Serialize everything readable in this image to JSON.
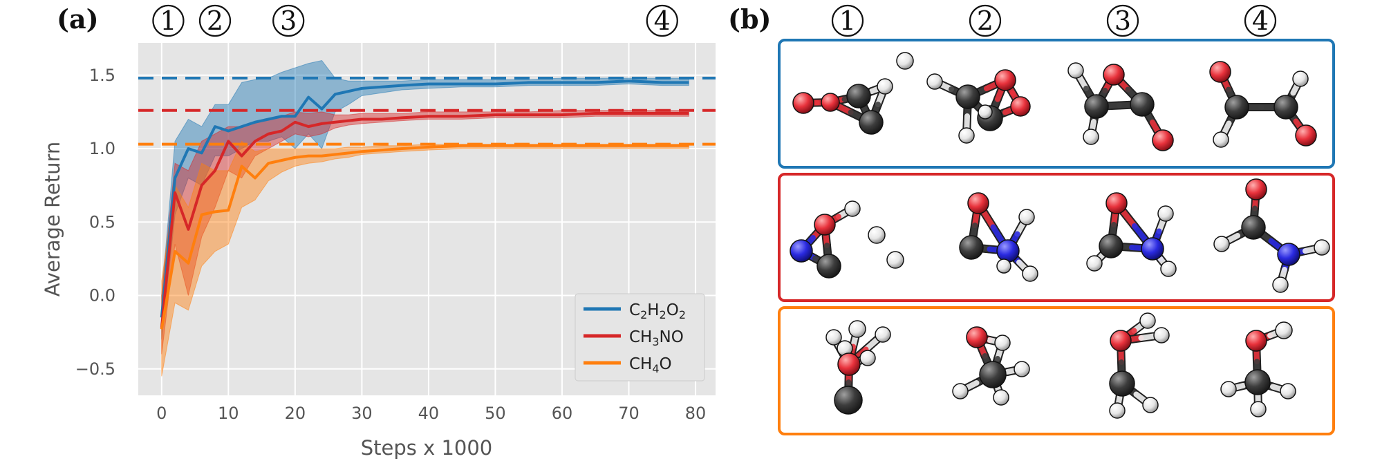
{
  "figure": {
    "panel_a_label": "(a)",
    "panel_b_label": "(b)",
    "step_markers": [
      {
        "label": "1",
        "x": 1
      },
      {
        "label": "2",
        "x": 8
      },
      {
        "label": "3",
        "x": 19
      },
      {
        "label": "4",
        "x": 75
      }
    ]
  },
  "chart_data": {
    "type": "line",
    "xlabel": "Steps x 1000",
    "ylabel": "Average Return",
    "xlim": [
      -3.5,
      83
    ],
    "ylim": [
      -0.68,
      1.72
    ],
    "xticks": [
      0,
      10,
      20,
      30,
      40,
      50,
      60,
      70,
      80
    ],
    "yticks": [
      -0.5,
      0.0,
      0.5,
      1.0,
      1.5
    ],
    "ytick_labels": [
      "−0.5",
      "0.0",
      "0.5",
      "1.0",
      "1.5"
    ],
    "grid": true,
    "legend_position": "lower-right",
    "series": [
      {
        "name": "C2H2O2",
        "legend": [
          {
            "t": "C"
          },
          {
            "t": "2",
            "sub": true
          },
          {
            "t": "H"
          },
          {
            "t": "2",
            "sub": true
          },
          {
            "t": "O"
          },
          {
            "t": "2",
            "sub": true
          }
        ],
        "color": "#1f77b4",
        "reference": 1.48,
        "x": [
          0,
          2,
          4,
          6,
          8,
          10,
          12,
          14,
          16,
          18,
          20,
          22,
          24,
          26,
          28,
          30,
          33,
          36,
          40,
          45,
          50,
          55,
          60,
          65,
          70,
          75,
          79
        ],
        "y": [
          -0.15,
          0.8,
          1.0,
          0.97,
          1.15,
          1.12,
          1.15,
          1.18,
          1.2,
          1.22,
          1.22,
          1.35,
          1.27,
          1.37,
          1.39,
          1.41,
          1.42,
          1.43,
          1.44,
          1.44,
          1.44,
          1.45,
          1.45,
          1.45,
          1.46,
          1.45,
          1.45
        ],
        "lower": [
          -0.3,
          0.55,
          0.8,
          0.75,
          0.95,
          0.95,
          1.0,
          1.05,
          1.05,
          1.08,
          1.0,
          1.1,
          1.0,
          1.25,
          1.3,
          1.36,
          1.38,
          1.4,
          1.41,
          1.42,
          1.42,
          1.43,
          1.43,
          1.43,
          1.44,
          1.43,
          1.43
        ],
        "upper": [
          0.0,
          1.05,
          1.2,
          1.15,
          1.3,
          1.3,
          1.45,
          1.47,
          1.48,
          1.52,
          1.55,
          1.58,
          1.6,
          1.48,
          1.46,
          1.46,
          1.46,
          1.46,
          1.47,
          1.47,
          1.47,
          1.47,
          1.48,
          1.48,
          1.48,
          1.48,
          1.48
        ]
      },
      {
        "name": "CH3NO",
        "legend": [
          {
            "t": "CH"
          },
          {
            "t": "3",
            "sub": true
          },
          {
            "t": "NO"
          }
        ],
        "color": "#d62728",
        "reference": 1.26,
        "x": [
          0,
          2,
          4,
          6,
          8,
          10,
          12,
          14,
          16,
          18,
          20,
          22,
          24,
          26,
          28,
          30,
          33,
          36,
          40,
          45,
          50,
          55,
          60,
          65,
          70,
          75,
          79
        ],
        "y": [
          -0.22,
          0.7,
          0.45,
          0.75,
          0.85,
          1.05,
          0.95,
          1.05,
          1.1,
          1.12,
          1.18,
          1.15,
          1.17,
          1.18,
          1.19,
          1.2,
          1.2,
          1.21,
          1.22,
          1.22,
          1.23,
          1.23,
          1.23,
          1.24,
          1.24,
          1.24,
          1.24
        ],
        "lower": [
          -0.4,
          0.35,
          0.0,
          0.4,
          0.6,
          0.85,
          0.8,
          0.95,
          1.0,
          1.05,
          1.1,
          1.08,
          1.1,
          1.14,
          1.16,
          1.17,
          1.18,
          1.19,
          1.2,
          1.2,
          1.21,
          1.21,
          1.21,
          1.22,
          1.22,
          1.22,
          1.22
        ],
        "upper": [
          0.0,
          0.9,
          0.85,
          1.05,
          1.1,
          1.15,
          1.15,
          1.18,
          1.2,
          1.22,
          1.25,
          1.24,
          1.25,
          1.23,
          1.23,
          1.24,
          1.24,
          1.24,
          1.25,
          1.25,
          1.25,
          1.25,
          1.26,
          1.26,
          1.26,
          1.26,
          1.26
        ]
      },
      {
        "name": "CH4O",
        "legend": [
          {
            "t": "CH"
          },
          {
            "t": "4",
            "sub": true
          },
          {
            "t": "O"
          }
        ],
        "color": "#ff7f0e",
        "reference": 1.03,
        "x": [
          0,
          2,
          4,
          6,
          8,
          10,
          12,
          14,
          16,
          18,
          20,
          22,
          24,
          26,
          28,
          30,
          33,
          36,
          40,
          45,
          50,
          55,
          60,
          65,
          70,
          75,
          79
        ],
        "y": [
          -0.23,
          0.3,
          0.22,
          0.55,
          0.57,
          0.58,
          0.88,
          0.8,
          0.9,
          0.92,
          0.94,
          0.95,
          0.95,
          0.96,
          0.97,
          0.98,
          0.99,
          1.0,
          1.01,
          1.02,
          1.02,
          1.02,
          1.02,
          1.02,
          1.02,
          1.02,
          1.02
        ],
        "lower": [
          -0.55,
          -0.05,
          -0.1,
          0.2,
          0.3,
          0.35,
          0.6,
          0.65,
          0.78,
          0.84,
          0.88,
          0.9,
          0.91,
          0.93,
          0.94,
          0.96,
          0.97,
          0.98,
          0.99,
          1.0,
          1.0,
          1.0,
          1.0,
          1.0,
          1.0,
          1.0,
          1.0
        ],
        "upper": [
          0.1,
          0.75,
          0.6,
          0.9,
          0.85,
          0.85,
          1.05,
          0.98,
          1.0,
          1.0,
          1.0,
          1.0,
          1.0,
          1.0,
          1.01,
          1.01,
          1.02,
          1.02,
          1.03,
          1.03,
          1.03,
          1.03,
          1.03,
          1.03,
          1.03,
          1.03,
          1.03
        ]
      }
    ]
  },
  "molecule_panel": {
    "column_labels": [
      "1",
      "2",
      "3",
      "4"
    ],
    "atom_colors": {
      "C": "#3d3d3d",
      "O": "#e8323c",
      "H": "#f2f2f2",
      "N": "#2a2ae0"
    },
    "rows": [
      {
        "formula": "C2H2O2",
        "border_color": "#1f77b4"
      },
      {
        "formula": "CH3NO",
        "border_color": "#d62728"
      },
      {
        "formula": "CH4O",
        "border_color": "#ff7f0e"
      }
    ]
  }
}
